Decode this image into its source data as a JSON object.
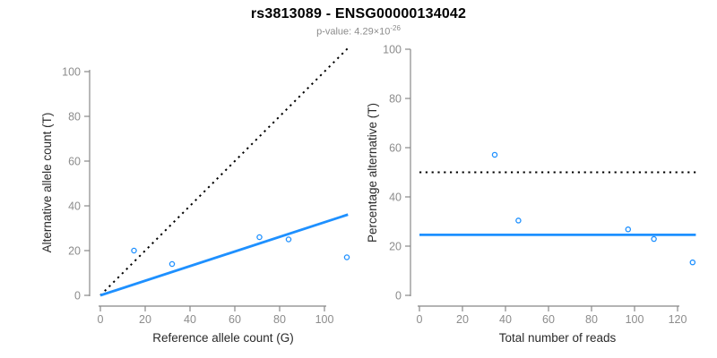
{
  "header": {
    "title": "rs3813089 - ENSG00000134042",
    "pvalue_label": "p-value: ",
    "pvalue_mantissa": "4.29×10",
    "pvalue_exponent": "-26"
  },
  "colors": {
    "accent_blue": "#1E90FF",
    "dotted_line_black": "#000000",
    "axis_gray": "#888888",
    "tick_label_gray": "#8c8c8c",
    "axis_label_dark": "#2a2a2a"
  },
  "chart_data": [
    {
      "type": "scatter",
      "title": "",
      "xlabel": "Reference allele count (G)",
      "ylabel": "Alternative allele count (T)",
      "xlim": [
        0,
        110
      ],
      "ylim": [
        0,
        110
      ],
      "xticks": [
        0,
        20,
        40,
        60,
        80,
        100
      ],
      "yticks": [
        0,
        20,
        40,
        60,
        80,
        100
      ],
      "grid": false,
      "legend": "none",
      "points": [
        [
          15,
          20
        ],
        [
          32,
          14
        ],
        [
          71,
          26
        ],
        [
          84,
          25
        ],
        [
          110,
          17
        ]
      ],
      "lines": [
        {
          "name": "identity-line",
          "style": "dotted",
          "color": "#000000",
          "x": [
            0,
            110.5
          ],
          "y": [
            0,
            110.5
          ]
        },
        {
          "name": "fit-line",
          "style": "solid",
          "color": "#1E90FF",
          "x": [
            0,
            110.5
          ],
          "y": [
            0,
            36.1
          ]
        }
      ]
    },
    {
      "type": "scatter",
      "title": "",
      "xlabel": "Total number of reads",
      "ylabel": "Percentage alternative (T)",
      "xlim": [
        0,
        129
      ],
      "ylim": [
        0,
        100
      ],
      "xticks": [
        0,
        20,
        40,
        60,
        80,
        100,
        120
      ],
      "yticks": [
        0,
        20,
        40,
        60,
        80,
        100
      ],
      "grid": false,
      "legend": "none",
      "points": [
        [
          35,
          57.1
        ],
        [
          46,
          30.4
        ],
        [
          97,
          26.8
        ],
        [
          109,
          22.9
        ],
        [
          127,
          13.4
        ]
      ],
      "lines": [
        {
          "name": "fifty-percent-line",
          "style": "dotted",
          "color": "#000000",
          "x": [
            0,
            128.5
          ],
          "y": [
            50,
            50
          ]
        },
        {
          "name": "mean-percentage-line",
          "style": "solid",
          "color": "#1E90FF",
          "x": [
            0,
            128.5
          ],
          "y": [
            24.6,
            24.6
          ]
        }
      ]
    }
  ]
}
